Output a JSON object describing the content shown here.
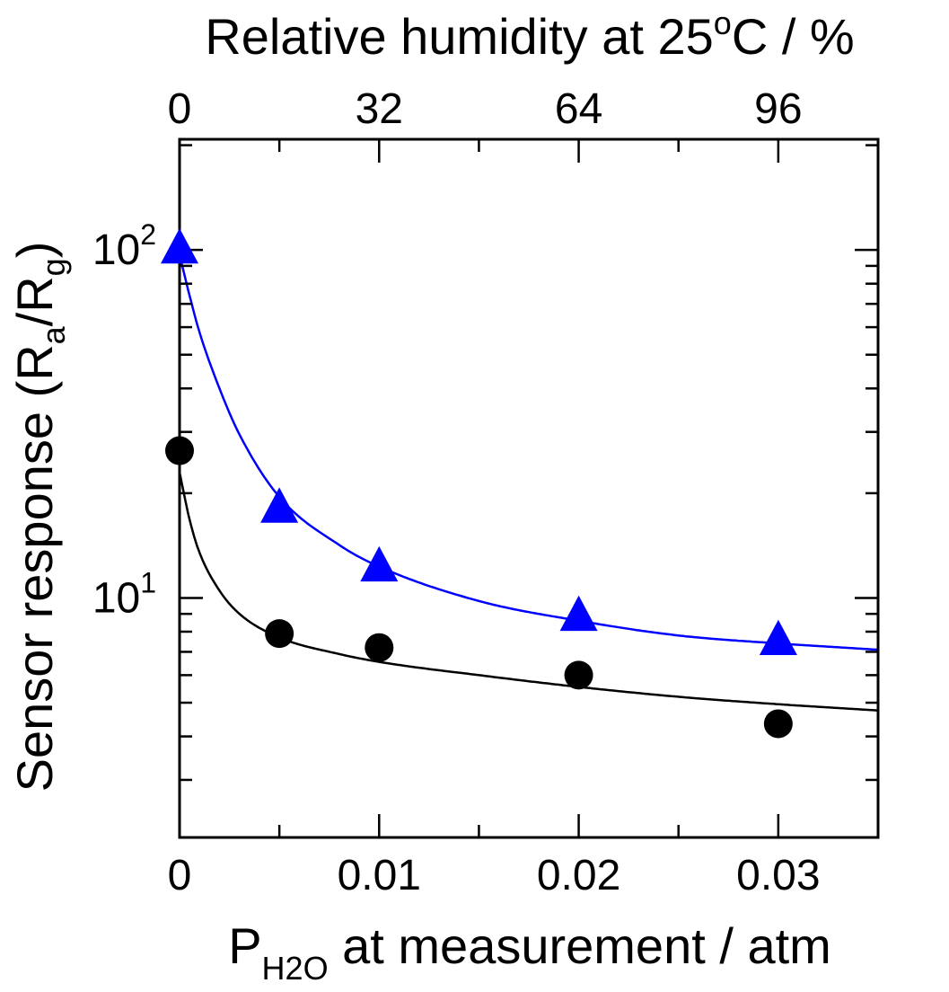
{
  "chart_data": {
    "type": "scatter",
    "title": "",
    "xlabel": {
      "main": "P",
      "subscript": "H2O",
      "rest": " at measurement / atm"
    },
    "xlabel_top": {
      "main": "Relative humidity at 25",
      "superscript": "o",
      "rest": "C / %"
    },
    "ylabel": {
      "main": "Sensor response (R",
      "sub1": "a",
      "mid": "/R",
      "sub2": "g",
      "end": ")"
    },
    "xlim": [
      0,
      0.035
    ],
    "ylim": [
      2.05,
      208
    ],
    "yscale": "log",
    "x_ticks": [
      {
        "value": 0,
        "label": "0"
      },
      {
        "value": 0.01,
        "label": "0.01"
      },
      {
        "value": 0.02,
        "label": "0.02"
      },
      {
        "value": 0.03,
        "label": "0.03"
      }
    ],
    "x_minor_ticks": [
      0.005,
      0.015,
      0.025
    ],
    "x_top_ticks": [
      {
        "value": 0,
        "label": "0"
      },
      {
        "value": 0.01,
        "label": "32"
      },
      {
        "value": 0.02,
        "label": "64"
      },
      {
        "value": 0.03,
        "label": "96"
      }
    ],
    "y_ticks": [
      {
        "value": 10,
        "base": "10",
        "exp": "1"
      },
      {
        "value": 100,
        "base": "10",
        "exp": "2"
      }
    ],
    "y_minor_ticks": [
      3,
      4,
      5,
      6,
      7,
      8,
      9,
      20,
      30,
      40,
      50,
      60,
      70,
      80,
      90,
      200
    ],
    "series": [
      {
        "name": "triangles",
        "marker": "triangle",
        "color": "#0000ff",
        "x": [
          0,
          0.005,
          0.01,
          0.02,
          0.03
        ],
        "y": [
          100,
          18,
          12.2,
          8.8,
          7.5
        ],
        "fit": {
          "x": [
            0,
            0.0005,
            0.001,
            0.002,
            0.003,
            0.005,
            0.008,
            0.01,
            0.015,
            0.02,
            0.025,
            0.03,
            0.035
          ],
          "y": [
            97,
            74,
            58,
            40,
            29.5,
            19.5,
            14.2,
            12.3,
            9.8,
            8.6,
            7.8,
            7.4,
            7.1
          ]
        }
      },
      {
        "name": "circles",
        "marker": "circle",
        "color": "#000000",
        "x": [
          0,
          0.005,
          0.01,
          0.02,
          0.03
        ],
        "y": [
          26.5,
          7.9,
          7.2,
          6.0,
          4.35
        ],
        "fit": {
          "x": [
            0,
            0.0005,
            0.001,
            0.002,
            0.003,
            0.005,
            0.008,
            0.01,
            0.015,
            0.02,
            0.025,
            0.03,
            0.035
          ],
          "y": [
            23,
            16.8,
            13.5,
            10.5,
            9.0,
            7.7,
            6.9,
            6.55,
            6.0,
            5.55,
            5.2,
            4.95,
            4.75
          ]
        }
      }
    ]
  }
}
